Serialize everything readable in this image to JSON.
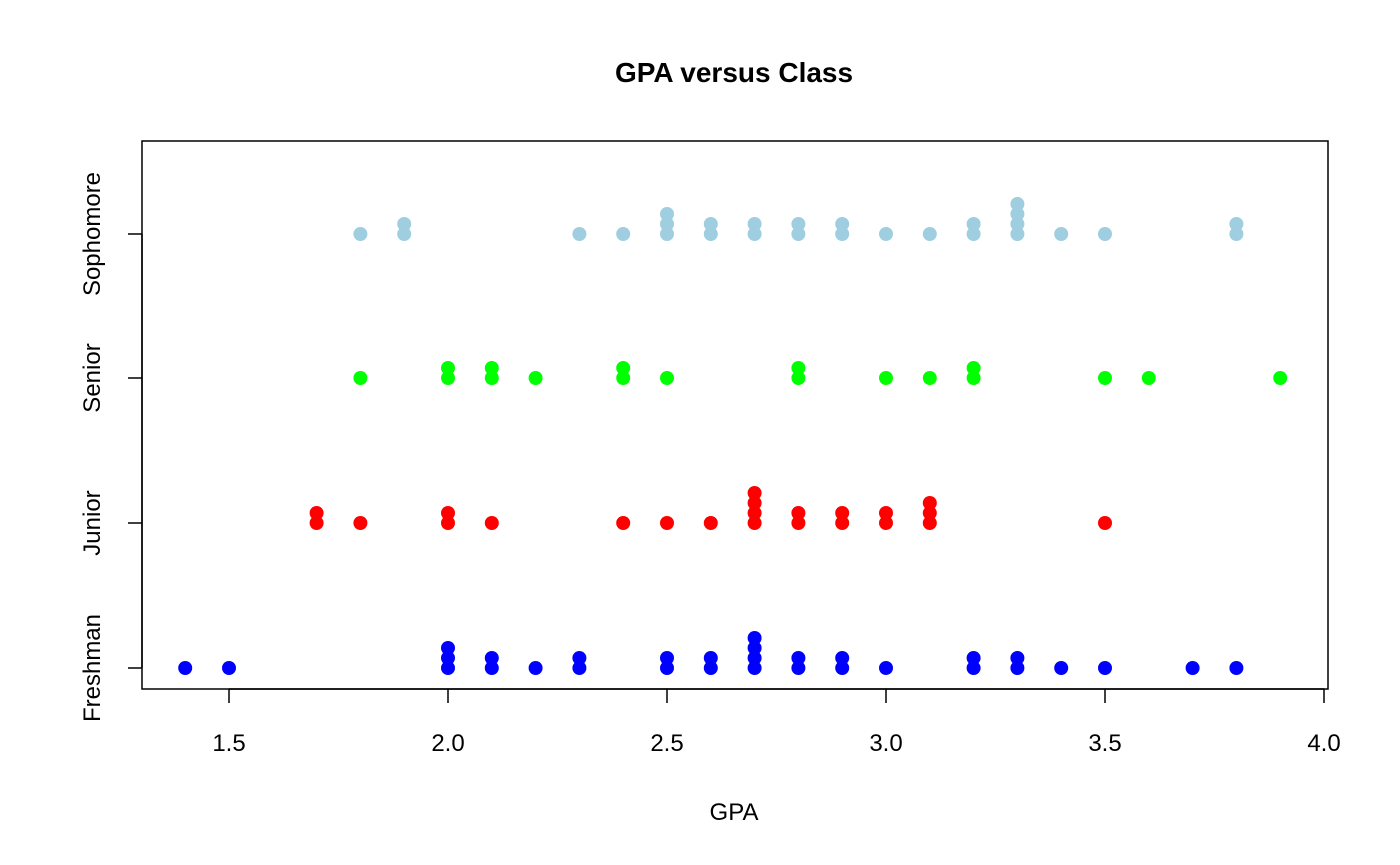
{
  "chart_data": {
    "type": "scatter",
    "subtype": "stripchart-stacked",
    "title": "GPA versus Class",
    "xlabel": "GPA",
    "ylabel": "",
    "xlim": [
      1.3,
      4.0
    ],
    "x_ticks": [
      "1.5",
      "2.0",
      "2.5",
      "3.0",
      "3.5",
      "4.0"
    ],
    "grid": false,
    "legend": "none",
    "categories": [
      "Freshman",
      "Junior",
      "Senior",
      "Sophomore"
    ],
    "series": [
      {
        "color": "#0000ff",
        "values": [
          1.4,
          1.5,
          2.0,
          2.0,
          2.0,
          2.1,
          2.1,
          2.2,
          2.3,
          2.3,
          2.5,
          2.5,
          2.6,
          2.6,
          2.7,
          2.7,
          2.7,
          2.7,
          2.8,
          2.8,
          2.9,
          2.9,
          3.0,
          3.2,
          3.2,
          3.3,
          3.3,
          3.4,
          3.5,
          3.7,
          3.8
        ]
      },
      {
        "color": "#ff0000",
        "values": [
          1.7,
          1.7,
          1.8,
          2.0,
          2.0,
          2.1,
          2.4,
          2.5,
          2.6,
          2.7,
          2.7,
          2.7,
          2.7,
          2.8,
          2.8,
          2.9,
          2.9,
          3.0,
          3.0,
          3.1,
          3.1,
          3.1,
          3.5
        ]
      },
      {
        "color": "#00ff00",
        "values": [
          1.8,
          2.0,
          2.0,
          2.1,
          2.1,
          2.2,
          2.4,
          2.4,
          2.5,
          2.8,
          2.8,
          3.0,
          3.1,
          3.2,
          3.2,
          3.5,
          3.6,
          3.9
        ]
      },
      {
        "color": "#9fcee0",
        "values": [
          1.8,
          1.9,
          1.9,
          2.3,
          2.4,
          2.5,
          2.5,
          2.5,
          2.6,
          2.6,
          2.7,
          2.7,
          2.8,
          2.8,
          2.9,
          2.9,
          3.0,
          3.1,
          3.2,
          3.2,
          3.3,
          3.3,
          3.3,
          3.3,
          3.4,
          3.5,
          3.8,
          3.8
        ]
      }
    ]
  }
}
